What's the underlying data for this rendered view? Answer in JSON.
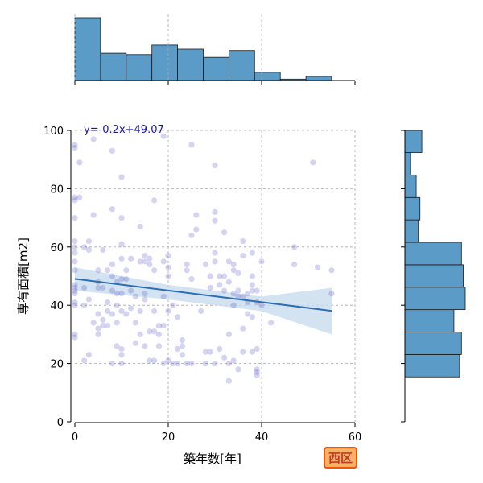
{
  "chart_data": {
    "type": "scatter",
    "xlabel": "築年数[年]",
    "ylabel": "専有面積[m2]",
    "xlim": [
      0,
      60
    ],
    "ylim": [
      0,
      100
    ],
    "xticks": [
      0,
      20,
      40,
      60
    ],
    "yticks": [
      0,
      20,
      40,
      60,
      80,
      100
    ],
    "grid": true,
    "regression": {
      "equation": "y=-0.2x+49.07",
      "slope": -0.2,
      "intercept": 49.07,
      "x_range": [
        0,
        55
      ],
      "ci_low": [
        [
          0,
          45
        ],
        [
          20,
          42
        ],
        [
          40,
          38
        ],
        [
          55,
          30
        ]
      ],
      "ci_high": [
        [
          0,
          53
        ],
        [
          20,
          47
        ],
        [
          40,
          43
        ],
        [
          55,
          46
        ]
      ]
    },
    "points": [
      [
        0,
        94
      ],
      [
        0,
        95
      ],
      [
        0,
        77
      ],
      [
        0,
        76
      ],
      [
        0,
        70
      ],
      [
        0,
        62
      ],
      [
        0,
        60
      ],
      [
        0,
        58
      ],
      [
        0,
        55
      ],
      [
        0,
        52
      ],
      [
        0,
        46
      ],
      [
        0,
        44
      ],
      [
        0,
        41
      ],
      [
        0,
        40
      ],
      [
        0,
        30
      ],
      [
        0,
        29
      ],
      [
        0,
        45
      ],
      [
        0,
        47
      ],
      [
        1,
        89
      ],
      [
        1,
        77
      ],
      [
        2,
        60
      ],
      [
        2,
        46
      ],
      [
        2,
        40
      ],
      [
        2,
        21
      ],
      [
        3,
        62
      ],
      [
        3,
        59
      ],
      [
        3,
        42
      ],
      [
        3,
        23
      ],
      [
        4,
        97
      ],
      [
        4,
        71
      ],
      [
        4,
        34
      ],
      [
        5,
        52
      ],
      [
        5,
        48
      ],
      [
        5,
        46
      ],
      [
        5,
        37
      ],
      [
        5,
        32
      ],
      [
        5,
        30
      ],
      [
        6,
        59
      ],
      [
        6,
        46
      ],
      [
        6,
        35
      ],
      [
        6,
        33
      ],
      [
        7,
        52
      ],
      [
        7,
        41
      ],
      [
        7,
        38
      ],
      [
        7,
        33
      ],
      [
        8,
        93
      ],
      [
        8,
        73
      ],
      [
        8,
        54
      ],
      [
        8,
        50
      ],
      [
        8,
        45
      ],
      [
        8,
        37
      ],
      [
        8,
        20
      ],
      [
        9,
        48
      ],
      [
        9,
        44
      ],
      [
        9,
        40
      ],
      [
        9,
        34
      ],
      [
        9,
        26
      ],
      [
        10,
        84
      ],
      [
        10,
        70
      ],
      [
        10,
        61
      ],
      [
        10,
        56
      ],
      [
        10,
        49
      ],
      [
        10,
        44
      ],
      [
        10,
        38
      ],
      [
        10,
        25
      ],
      [
        10,
        23
      ],
      [
        10,
        20
      ],
      [
        11,
        52
      ],
      [
        11,
        49
      ],
      [
        11,
        37
      ],
      [
        12,
        56
      ],
      [
        12,
        45
      ],
      [
        12,
        39
      ],
      [
        13,
        43
      ],
      [
        13,
        34
      ],
      [
        13,
        27
      ],
      [
        14,
        67
      ],
      [
        14,
        55
      ],
      [
        14,
        38
      ],
      [
        14,
        30
      ],
      [
        15,
        57
      ],
      [
        15,
        55
      ],
      [
        15,
        44
      ],
      [
        15,
        42
      ],
      [
        15,
        26
      ],
      [
        16,
        56
      ],
      [
        16,
        54
      ],
      [
        16,
        31
      ],
      [
        16,
        21
      ],
      [
        17,
        76
      ],
      [
        17,
        52
      ],
      [
        17,
        38
      ],
      [
        17,
        31
      ],
      [
        17,
        21
      ],
      [
        18,
        33
      ],
      [
        18,
        30
      ],
      [
        18,
        26
      ],
      [
        19,
        98
      ],
      [
        19,
        55
      ],
      [
        19,
        43
      ],
      [
        19,
        33
      ],
      [
        19,
        20
      ],
      [
        20,
        57
      ],
      [
        20,
        53
      ],
      [
        20,
        50
      ],
      [
        20,
        38
      ],
      [
        20,
        21
      ],
      [
        21,
        40
      ],
      [
        21,
        20
      ],
      [
        22,
        36
      ],
      [
        22,
        25
      ],
      [
        22,
        20
      ],
      [
        23,
        28
      ],
      [
        23,
        26
      ],
      [
        23,
        23
      ],
      [
        24,
        54
      ],
      [
        24,
        52
      ],
      [
        24,
        20
      ],
      [
        25,
        95
      ],
      [
        25,
        64
      ],
      [
        25,
        49
      ],
      [
        25,
        20
      ],
      [
        26,
        71
      ],
      [
        26,
        66
      ],
      [
        27,
        38
      ],
      [
        28,
        54
      ],
      [
        28,
        24
      ],
      [
        28,
        20
      ],
      [
        29,
        50
      ],
      [
        29,
        46
      ],
      [
        29,
        24
      ],
      [
        30,
        88
      ],
      [
        30,
        72
      ],
      [
        30,
        69
      ],
      [
        30,
        58
      ],
      [
        30,
        55
      ],
      [
        30,
        20
      ],
      [
        31,
        50
      ],
      [
        31,
        47
      ],
      [
        31,
        25
      ],
      [
        32,
        65
      ],
      [
        32,
        50
      ],
      [
        32,
        45
      ],
      [
        32,
        22
      ],
      [
        33,
        55
      ],
      [
        33,
        48
      ],
      [
        33,
        30
      ],
      [
        33,
        14
      ],
      [
        33,
        20
      ],
      [
        34,
        54
      ],
      [
        34,
        52
      ],
      [
        34,
        44
      ],
      [
        34,
        40
      ],
      [
        34,
        21
      ],
      [
        35,
        51
      ],
      [
        35,
        45
      ],
      [
        35,
        43
      ],
      [
        35,
        18
      ],
      [
        36,
        62
      ],
      [
        36,
        57
      ],
      [
        36,
        43
      ],
      [
        36,
        32
      ],
      [
        36,
        24
      ],
      [
        37,
        44
      ],
      [
        37,
        41
      ],
      [
        37,
        37
      ],
      [
        38,
        58
      ],
      [
        38,
        50
      ],
      [
        38,
        47
      ],
      [
        38,
        45
      ],
      [
        38,
        36
      ],
      [
        38,
        24
      ],
      [
        39,
        45
      ],
      [
        39,
        41
      ],
      [
        39,
        25
      ],
      [
        39,
        18
      ],
      [
        39,
        16
      ],
      [
        39,
        17
      ],
      [
        40,
        55
      ],
      [
        40,
        40
      ],
      [
        42,
        34
      ],
      [
        47,
        60
      ],
      [
        47,
        54
      ],
      [
        51,
        89
      ],
      [
        52,
        53
      ],
      [
        55,
        52
      ],
      [
        55,
        44
      ]
    ],
    "top_histogram": {
      "bin_edges": [
        0,
        5.5,
        11,
        16.5,
        22,
        27.5,
        33,
        38.5,
        44,
        49.5,
        55
      ],
      "counts": [
        46,
        20,
        19,
        26,
        23,
        17,
        22,
        6,
        1,
        3
      ]
    },
    "right_histogram": {
      "bin_edges": [
        0,
        7.7,
        15.4,
        23.1,
        30.8,
        38.5,
        46.2,
        53.9,
        61.6,
        69.3,
        77,
        84.7,
        92.4,
        100
      ],
      "counts": [
        0,
        0,
        29,
        30,
        26,
        32,
        31,
        30,
        7,
        8,
        6,
        3,
        9
      ]
    }
  },
  "badge": {
    "label": "西区"
  },
  "colors": {
    "hist_fill": "#5b9bc8",
    "hist_edge": "#1a1a1a",
    "point_fill": "#3b3bbf",
    "line": "#2c6fb0",
    "ci_band": "#c6d9ec",
    "grid": "#a9a9a9"
  }
}
